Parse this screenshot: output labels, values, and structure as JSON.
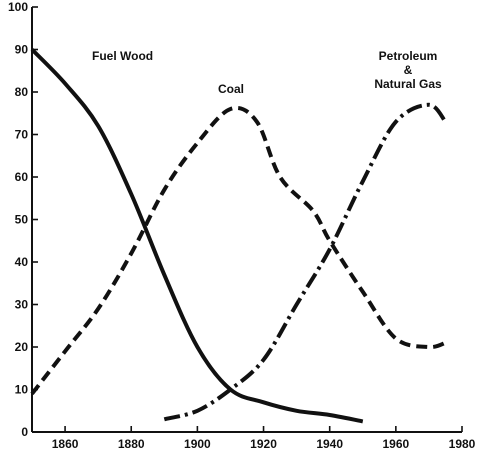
{
  "chart_data": {
    "type": "line",
    "title": "",
    "xlabel": "",
    "ylabel": "",
    "xlim": [
      1850,
      1980
    ],
    "ylim": [
      0,
      100
    ],
    "grid": false,
    "legend": "none",
    "x_ticks": [
      1860,
      1880,
      1900,
      1920,
      1940,
      1960,
      1980
    ],
    "x_tick_labels": [
      "1860",
      "1880",
      "1900",
      "1920",
      "1940",
      "1960",
      "1980"
    ],
    "y_ticks": [
      0,
      10,
      20,
      30,
      40,
      50,
      60,
      70,
      80,
      90,
      100
    ],
    "y_tick_labels": [
      "0",
      "10",
      "20",
      "30",
      "40",
      "50",
      "60",
      "70",
      "80",
      "90",
      "100"
    ],
    "series": [
      {
        "name": "Fuel Wood",
        "label_lines": [
          "Fuel Wood"
        ],
        "style": "solid",
        "x": [
          1850,
          1860,
          1870,
          1880,
          1890,
          1900,
          1910,
          1920,
          1930,
          1940,
          1950
        ],
        "y": [
          90,
          82,
          72,
          56,
          37,
          20,
          10,
          7,
          5,
          4,
          2.5
        ]
      },
      {
        "name": "Coal",
        "label_lines": [
          "Coal"
        ],
        "style": "dashed",
        "x": [
          1850,
          1860,
          1870,
          1880,
          1890,
          1900,
          1910,
          1918,
          1925,
          1935,
          1940,
          1950,
          1960,
          1970,
          1975
        ],
        "y": [
          9,
          19,
          29,
          42,
          57,
          68,
          76,
          73,
          60,
          52,
          45,
          33,
          22,
          20,
          21
        ]
      },
      {
        "name": "Petroleum & Natural Gas",
        "label_lines": [
          "Petroleum",
          "&",
          "Natural Gas"
        ],
        "style": "dashdot",
        "x": [
          1890,
          1900,
          1910,
          1920,
          1930,
          1940,
          1950,
          1960,
          1970,
          1975
        ],
        "y": [
          3,
          5,
          10,
          17,
          30,
          43,
          59,
          73,
          77,
          73
        ]
      }
    ]
  }
}
